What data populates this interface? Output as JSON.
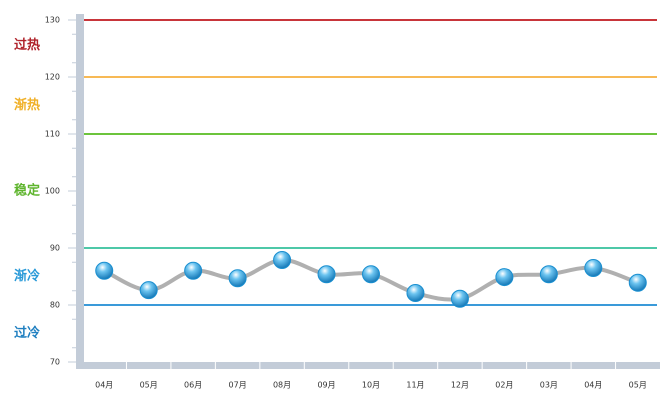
{
  "chart_data": {
    "type": "line",
    "categories": [
      "04月",
      "05月",
      "06月",
      "07月",
      "08月",
      "09月",
      "10月",
      "11月",
      "12月",
      "02月",
      "03月",
      "04月",
      "05月"
    ],
    "values": [
      86,
      82.6,
      86,
      84.7,
      87.9,
      85.4,
      85.4,
      82.1,
      81.1,
      84.9,
      85.4,
      86.5,
      83.9
    ],
    "line_color": "#b0b0b0",
    "marker_color": "#1a8fd0",
    "ylim": [
      70,
      130
    ],
    "yticks": [
      70,
      80,
      90,
      100,
      110,
      120,
      130
    ],
    "thresholds": [
      {
        "value": 130,
        "color": "#c8353a"
      },
      {
        "value": 120,
        "color": "#f7b955"
      },
      {
        "value": 110,
        "color": "#6cc43c"
      },
      {
        "value": 90,
        "color": "#4ec8a8"
      },
      {
        "value": 80,
        "color": "#3a9ad9"
      }
    ],
    "zones": [
      {
        "label": "过热",
        "color": "#b0222a"
      },
      {
        "label": "渐热",
        "color": "#f0b028"
      },
      {
        "label": "稳定",
        "color": "#5fb52e"
      },
      {
        "label": "渐冷",
        "color": "#2a9ad8"
      },
      {
        "label": "过冷",
        "color": "#1f7fc0"
      }
    ]
  }
}
